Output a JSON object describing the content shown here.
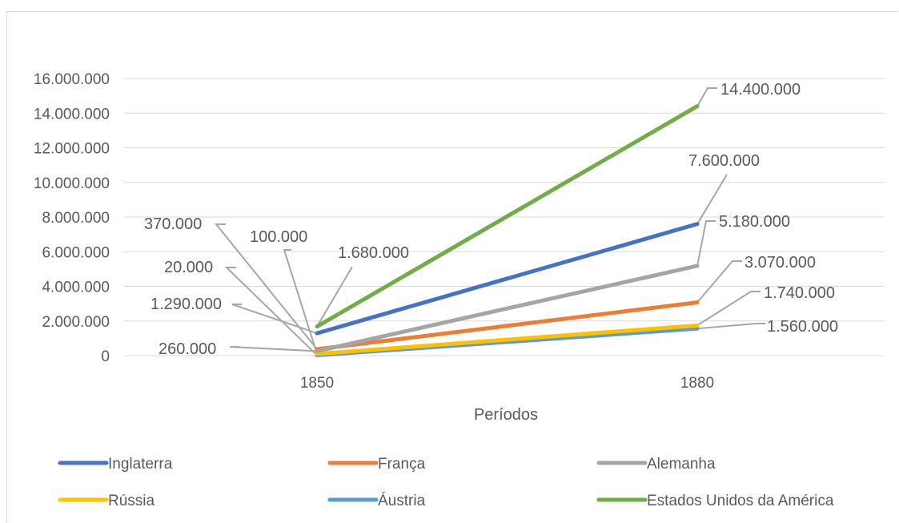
{
  "chart_data": {
    "type": "line",
    "title": "",
    "xlabel": "Períodos",
    "ylabel": "",
    "categories": [
      "1850",
      "1880"
    ],
    "ylim": [
      0,
      16000000
    ],
    "yticks": [
      0,
      2000000,
      4000000,
      6000000,
      8000000,
      10000000,
      12000000,
      14000000,
      16000000
    ],
    "ytick_labels": [
      "0",
      "2.000.000",
      "4.000.000",
      "6.000.000",
      "8.000.000",
      "10.000.000",
      "12.000.000",
      "14.000.000",
      "16.000.000"
    ],
    "grid": true,
    "legend_position": "bottom",
    "series": [
      {
        "name": "Inglaterra",
        "values": [
          1290000,
          7600000
        ],
        "color": "#4472c4",
        "labels": [
          "1.290.000",
          "7.600.000"
        ]
      },
      {
        "name": "França",
        "values": [
          370000,
          3070000
        ],
        "color": "#ed7d31",
        "labels": [
          "370.000",
          "3.070.000"
        ]
      },
      {
        "name": "Alemanha",
        "values": [
          260000,
          5180000
        ],
        "color": "#a5a5a5",
        "labels": [
          "260.000",
          "5.180.000"
        ]
      },
      {
        "name": "Rússia",
        "values": [
          100000,
          1740000
        ],
        "color": "#ffc000",
        "labels": [
          "100.000",
          "1.740.000"
        ]
      },
      {
        "name": "Áustria",
        "values": [
          20000,
          1560000
        ],
        "color": "#5b9bd5",
        "labels": [
          "20.000",
          "1.560.000"
        ]
      },
      {
        "name": "Estados Unidos da América",
        "values": [
          1680000,
          14400000
        ],
        "color": "#70ad47",
        "labels": [
          "1.680.000",
          "14.400.000"
        ]
      }
    ]
  }
}
